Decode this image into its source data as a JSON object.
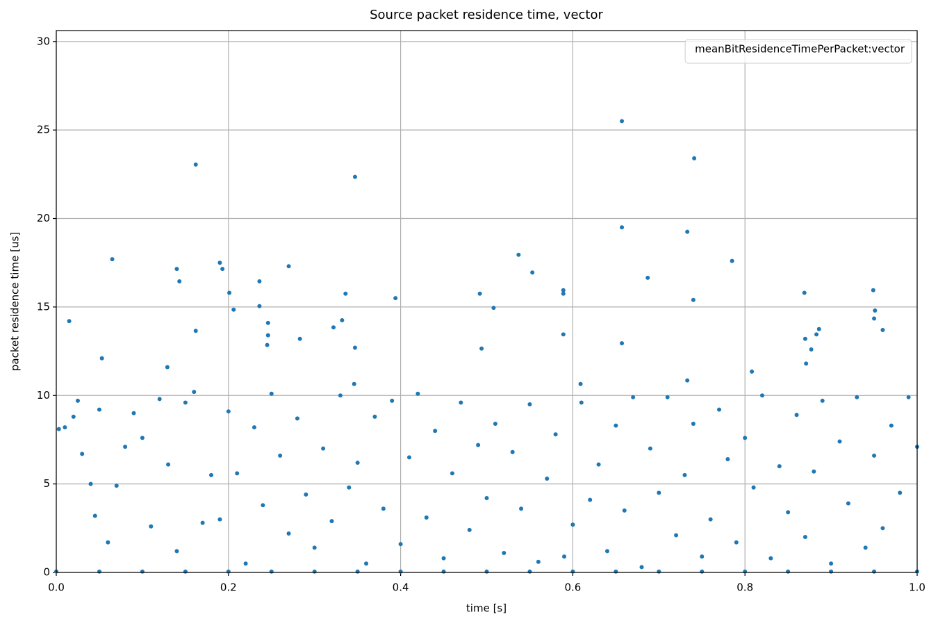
{
  "chart_data": {
    "type": "scatter",
    "title": "Source packet residence time, vector",
    "xlabel": "time [s]",
    "ylabel": "packet residence time [us]",
    "xlim": [
      0,
      1
    ],
    "ylim": [
      0,
      30.62
    ],
    "xticks": [
      {
        "value": 0,
        "label": "0.0"
      },
      0.2,
      0.4,
      0.6,
      0.8,
      {
        "value": 1,
        "label": "1.0"
      }
    ],
    "yticks": [
      0,
      5,
      10,
      15,
      20,
      25,
      30
    ],
    "grid": true,
    "legend": "upper right",
    "series": [
      {
        "name": "meanBitResidenceTimePerPacket:vector",
        "color": "#1f77b4",
        "x": [
          0.162,
          0.657,
          0.741,
          0.347,
          0.657,
          0.733,
          0.065,
          0.14,
          0.143,
          0.19,
          0.193,
          0.27,
          0.236,
          0.537,
          0.553,
          0.687,
          0.785,
          0.201,
          0.206,
          0.236,
          0.246,
          0.246,
          0.245,
          0.283,
          0.162,
          0.336,
          0.332,
          0.322,
          0.347,
          0.346,
          0.394,
          0.492,
          0.508,
          0.494,
          0.589,
          0.589,
          0.589,
          0.657,
          0.74,
          0.733,
          0.808,
          0.609,
          0.869,
          0.87,
          0.871,
          0.877,
          0.883,
          0.886,
          0.949,
          0.951,
          0.95,
          0.96,
          0.015,
          0.053,
          0.129,
          0.003,
          0.01,
          0.02,
          0.025,
          0.03,
          0.04,
          0.045,
          0.05,
          0.06,
          0.07,
          0.08,
          0.09,
          0.1,
          0.11,
          0.12,
          0.13,
          0.14,
          0.15,
          0.16,
          0.17,
          0.18,
          0.19,
          0.2,
          0.21,
          0.22,
          0.23,
          0.24,
          0.25,
          0.26,
          0.27,
          0.28,
          0.29,
          0.3,
          0.31,
          0.32,
          0.33,
          0.34,
          0.35,
          0.36,
          0.37,
          0.38,
          0.39,
          0.4,
          0.41,
          0.42,
          0.43,
          0.44,
          0.45,
          0.46,
          0.47,
          0.48,
          0.49,
          0.5,
          0.51,
          0.52,
          0.53,
          0.54,
          0.55,
          0.56,
          0.57,
          0.58,
          0.59,
          0.6,
          0.61,
          0.62,
          0.63,
          0.64,
          0.65,
          0.66,
          0.67,
          0.68,
          0.69,
          0.7,
          0.71,
          0.72,
          0.73,
          0.74,
          0.75,
          0.76,
          0.77,
          0.78,
          0.79,
          0.8,
          0.81,
          0.82,
          0.83,
          0.84,
          0.85,
          0.86,
          0.87,
          0.88,
          0.89,
          0.9,
          0.91,
          0.92,
          0.93,
          0.94,
          0.95,
          0.96,
          0.97,
          0.98,
          0.99,
          1,
          0,
          0.05,
          0.1,
          0.15,
          0.2,
          0.25,
          0.3,
          0.35,
          0.4,
          0.45,
          0.5,
          0.55,
          0.6,
          0.65,
          0.7,
          0.75,
          0.8,
          0.85,
          0.9,
          0.95,
          1
        ],
        "values": [
          23.05,
          25.5,
          23.4,
          22.35,
          19.5,
          19.25,
          17.7,
          17.15,
          16.45,
          17.5,
          17.15,
          17.3,
          16.45,
          17.95,
          16.95,
          16.65,
          17.6,
          15.8,
          14.85,
          15.05,
          14.1,
          13.4,
          12.85,
          13.2,
          13.65,
          15.75,
          14.25,
          13.85,
          12.7,
          10.65,
          15.5,
          15.75,
          14.95,
          12.65,
          15.95,
          15.75,
          13.45,
          12.95,
          15.4,
          10.85,
          11.35,
          10.65,
          15.8,
          13.2,
          11.8,
          12.6,
          13.45,
          13.75,
          15.95,
          14.8,
          14.35,
          13.7,
          14.2,
          12.1,
          11.6,
          8.1,
          8.2,
          8.8,
          9.7,
          6.7,
          5.0,
          3.2,
          9.2,
          1.7,
          4.9,
          7.1,
          9.0,
          7.6,
          2.6,
          9.8,
          6.1,
          1.2,
          9.6,
          10.2,
          2.8,
          5.5,
          3.0,
          9.1,
          5.6,
          0.5,
          8.2,
          3.8,
          10.1,
          6.6,
          2.2,
          8.7,
          4.4,
          1.4,
          7.0,
          2.9,
          10.0,
          4.8,
          6.2,
          0.5,
          8.8,
          3.6,
          9.7,
          1.6,
          6.5,
          10.1,
          3.1,
          8.0,
          0.8,
          5.6,
          9.6,
          2.4,
          7.2,
          4.2,
          8.4,
          1.1,
          6.8,
          3.6,
          9.5,
          0.6,
          5.3,
          7.8,
          0.9,
          2.7,
          9.6,
          4.1,
          6.1,
          1.2,
          8.3,
          3.5,
          9.9,
          0.3,
          7.0,
          4.5,
          9.9,
          2.1,
          5.5,
          8.4,
          0.9,
          3.0,
          9.2,
          6.4,
          1.7,
          7.6,
          4.8,
          10.0,
          0.8,
          6.0,
          3.4,
          8.9,
          2.0,
          5.7,
          9.7,
          0.5,
          7.4,
          3.9,
          9.9,
          1.4,
          6.6,
          2.5,
          8.3,
          4.5,
          9.9,
          7.1,
          0.05,
          0.05,
          0.05,
          0.05,
          0.05,
          0.05,
          0.05,
          0.05,
          0.05,
          0.05,
          0.05,
          0.05,
          0.05,
          0.05,
          0.05,
          0.05,
          0.05,
          0.05,
          0.05,
          0.05,
          0.05
        ]
      }
    ]
  }
}
